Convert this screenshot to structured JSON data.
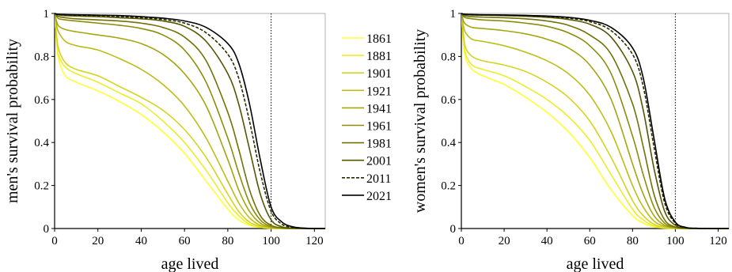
{
  "chart_data": [
    {
      "type": "line",
      "id": "men",
      "title": "",
      "xlabel": "age lived",
      "ylabel": "men's survival probability",
      "xlim": [
        0,
        125
      ],
      "ylim": [
        0,
        1
      ],
      "xticks": [
        "0",
        "20",
        "40",
        "60",
        "80",
        "100",
        "120"
      ],
      "yticks": [
        "0",
        "0.2",
        "0.4",
        "0.6",
        "0.8",
        "1"
      ],
      "grid": false,
      "reference_line_x": 100,
      "x": [
        0,
        1,
        2,
        5,
        10,
        20,
        30,
        40,
        50,
        60,
        70,
        80,
        85,
        90,
        95,
        100,
        105,
        110,
        115,
        120,
        125
      ],
      "series": [
        {
          "name": "1861",
          "color": "#ffff33",
          "dash": "solid",
          "values": [
            1.0,
            0.85,
            0.78,
            0.71,
            0.68,
            0.64,
            0.59,
            0.53,
            0.45,
            0.35,
            0.22,
            0.09,
            0.04,
            0.015,
            0.005,
            0.001,
            0,
            0,
            0,
            0,
            0
          ]
        },
        {
          "name": "1881",
          "color": "#ecec2a",
          "dash": "solid",
          "values": [
            1.0,
            0.86,
            0.8,
            0.75,
            0.72,
            0.68,
            0.63,
            0.58,
            0.5,
            0.4,
            0.27,
            0.12,
            0.06,
            0.02,
            0.006,
            0.002,
            0,
            0,
            0,
            0,
            0
          ]
        },
        {
          "name": "1901",
          "color": "#d4d420",
          "dash": "solid",
          "values": [
            1.0,
            0.89,
            0.83,
            0.77,
            0.74,
            0.71,
            0.66,
            0.61,
            0.55,
            0.46,
            0.33,
            0.16,
            0.08,
            0.03,
            0.01,
            0.003,
            0.001,
            0,
            0,
            0,
            0
          ]
        },
        {
          "name": "1921",
          "color": "#bdbd18",
          "dash": "solid",
          "values": [
            1.0,
            0.94,
            0.91,
            0.87,
            0.85,
            0.83,
            0.79,
            0.74,
            0.67,
            0.57,
            0.42,
            0.22,
            0.12,
            0.05,
            0.015,
            0.004,
            0.001,
            0,
            0,
            0,
            0
          ]
        },
        {
          "name": "1941",
          "color": "#a5a510",
          "dash": "solid",
          "values": [
            1.0,
            0.96,
            0.94,
            0.925,
            0.915,
            0.9,
            0.885,
            0.86,
            0.81,
            0.72,
            0.57,
            0.32,
            0.18,
            0.08,
            0.025,
            0.006,
            0.001,
            0,
            0,
            0,
            0
          ]
        },
        {
          "name": "1961",
          "color": "#8c8c0a",
          "dash": "solid",
          "values": [
            1.0,
            0.985,
            0.975,
            0.97,
            0.965,
            0.955,
            0.945,
            0.93,
            0.9,
            0.83,
            0.68,
            0.42,
            0.26,
            0.12,
            0.04,
            0.01,
            0.002,
            0,
            0,
            0,
            0
          ]
        },
        {
          "name": "1981",
          "color": "#717105",
          "dash": "solid",
          "values": [
            1.0,
            0.99,
            0.985,
            0.98,
            0.975,
            0.97,
            0.965,
            0.955,
            0.935,
            0.89,
            0.78,
            0.54,
            0.37,
            0.18,
            0.06,
            0.015,
            0.003,
            0.001,
            0,
            0,
            0
          ]
        },
        {
          "name": "2001",
          "color": "#555502",
          "dash": "solid",
          "values": [
            1.0,
            0.995,
            0.993,
            0.99,
            0.988,
            0.985,
            0.98,
            0.975,
            0.965,
            0.94,
            0.87,
            0.72,
            0.58,
            0.37,
            0.16,
            0.04,
            0.008,
            0.002,
            0,
            0,
            0
          ]
        },
        {
          "name": "2011",
          "color": "#2a2a00",
          "dash": "dashed",
          "values": [
            1.0,
            0.996,
            0.995,
            0.993,
            0.992,
            0.99,
            0.986,
            0.98,
            0.972,
            0.955,
            0.91,
            0.81,
            0.7,
            0.5,
            0.26,
            0.08,
            0.02,
            0.005,
            0.001,
            0,
            0
          ]
        },
        {
          "name": "2021",
          "color": "#000000",
          "dash": "solid",
          "values": [
            1.0,
            0.997,
            0.996,
            0.995,
            0.994,
            0.992,
            0.99,
            0.985,
            0.978,
            0.965,
            0.935,
            0.86,
            0.77,
            0.58,
            0.32,
            0.1,
            0.03,
            0.008,
            0.002,
            0,
            0
          ]
        }
      ]
    },
    {
      "type": "line",
      "id": "women",
      "title": "",
      "xlabel": "age lived",
      "ylabel": "women's survival probability",
      "xlim": [
        0,
        125
      ],
      "ylim": [
        0,
        1
      ],
      "xticks": [
        "0",
        "20",
        "40",
        "60",
        "80",
        "100",
        "120"
      ],
      "yticks": [
        "0",
        "0.2",
        "0.4",
        "0.6",
        "0.8",
        "1"
      ],
      "grid": false,
      "reference_line_x": 100,
      "x": [
        0,
        1,
        2,
        5,
        10,
        20,
        30,
        40,
        50,
        60,
        70,
        80,
        85,
        90,
        95,
        100,
        105,
        110,
        115,
        120,
        125
      ],
      "series": [
        {
          "name": "1861",
          "color": "#ffff33",
          "dash": "solid",
          "values": [
            1.0,
            0.86,
            0.79,
            0.74,
            0.71,
            0.67,
            0.61,
            0.54,
            0.45,
            0.33,
            0.18,
            0.06,
            0.025,
            0.008,
            0.002,
            0,
            0,
            0,
            0,
            0,
            0
          ]
        },
        {
          "name": "1881",
          "color": "#ecec2a",
          "dash": "solid",
          "values": [
            1.0,
            0.88,
            0.81,
            0.76,
            0.74,
            0.71,
            0.66,
            0.6,
            0.52,
            0.41,
            0.25,
            0.09,
            0.04,
            0.012,
            0.003,
            0.001,
            0,
            0,
            0,
            0,
            0
          ]
        },
        {
          "name": "1901",
          "color": "#d4d420",
          "dash": "solid",
          "values": [
            1.0,
            0.9,
            0.84,
            0.8,
            0.78,
            0.76,
            0.73,
            0.68,
            0.61,
            0.5,
            0.33,
            0.13,
            0.06,
            0.02,
            0.005,
            0.001,
            0,
            0,
            0,
            0,
            0
          ]
        },
        {
          "name": "1921",
          "color": "#bdbd18",
          "dash": "solid",
          "values": [
            1.0,
            0.94,
            0.91,
            0.88,
            0.87,
            0.85,
            0.82,
            0.78,
            0.72,
            0.62,
            0.45,
            0.2,
            0.1,
            0.035,
            0.01,
            0.002,
            0,
            0,
            0,
            0,
            0
          ]
        },
        {
          "name": "1941",
          "color": "#a5a510",
          "dash": "solid",
          "values": [
            1.0,
            0.965,
            0.95,
            0.935,
            0.93,
            0.92,
            0.905,
            0.88,
            0.84,
            0.76,
            0.6,
            0.3,
            0.16,
            0.06,
            0.015,
            0.003,
            0,
            0,
            0,
            0,
            0
          ]
        },
        {
          "name": "1961",
          "color": "#8c8c0a",
          "dash": "solid",
          "values": [
            1.0,
            0.985,
            0.98,
            0.975,
            0.97,
            0.965,
            0.955,
            0.94,
            0.91,
            0.85,
            0.72,
            0.43,
            0.25,
            0.1,
            0.025,
            0.005,
            0.001,
            0,
            0,
            0,
            0
          ]
        },
        {
          "name": "1981",
          "color": "#717105",
          "dash": "solid",
          "values": [
            1.0,
            0.99,
            0.988,
            0.985,
            0.983,
            0.98,
            0.975,
            0.965,
            0.945,
            0.9,
            0.81,
            0.58,
            0.38,
            0.16,
            0.04,
            0.007,
            0.001,
            0,
            0,
            0,
            0
          ]
        },
        {
          "name": "2001",
          "color": "#555502",
          "dash": "solid",
          "values": [
            1.0,
            0.995,
            0.994,
            0.993,
            0.992,
            0.99,
            0.987,
            0.982,
            0.972,
            0.95,
            0.89,
            0.73,
            0.55,
            0.28,
            0.08,
            0.015,
            0.002,
            0,
            0,
            0,
            0
          ]
        },
        {
          "name": "2011",
          "color": "#2a2a00",
          "dash": "dashed",
          "values": [
            1.0,
            0.996,
            0.995,
            0.994,
            0.993,
            0.992,
            0.99,
            0.986,
            0.978,
            0.962,
            0.92,
            0.81,
            0.66,
            0.38,
            0.12,
            0.025,
            0.004,
            0.001,
            0,
            0,
            0
          ]
        },
        {
          "name": "2021",
          "color": "#000000",
          "dash": "solid",
          "values": [
            1.0,
            0.997,
            0.996,
            0.995,
            0.994,
            0.993,
            0.991,
            0.988,
            0.982,
            0.968,
            0.935,
            0.84,
            0.7,
            0.42,
            0.14,
            0.03,
            0.005,
            0.001,
            0,
            0,
            0
          ]
        }
      ]
    }
  ]
}
